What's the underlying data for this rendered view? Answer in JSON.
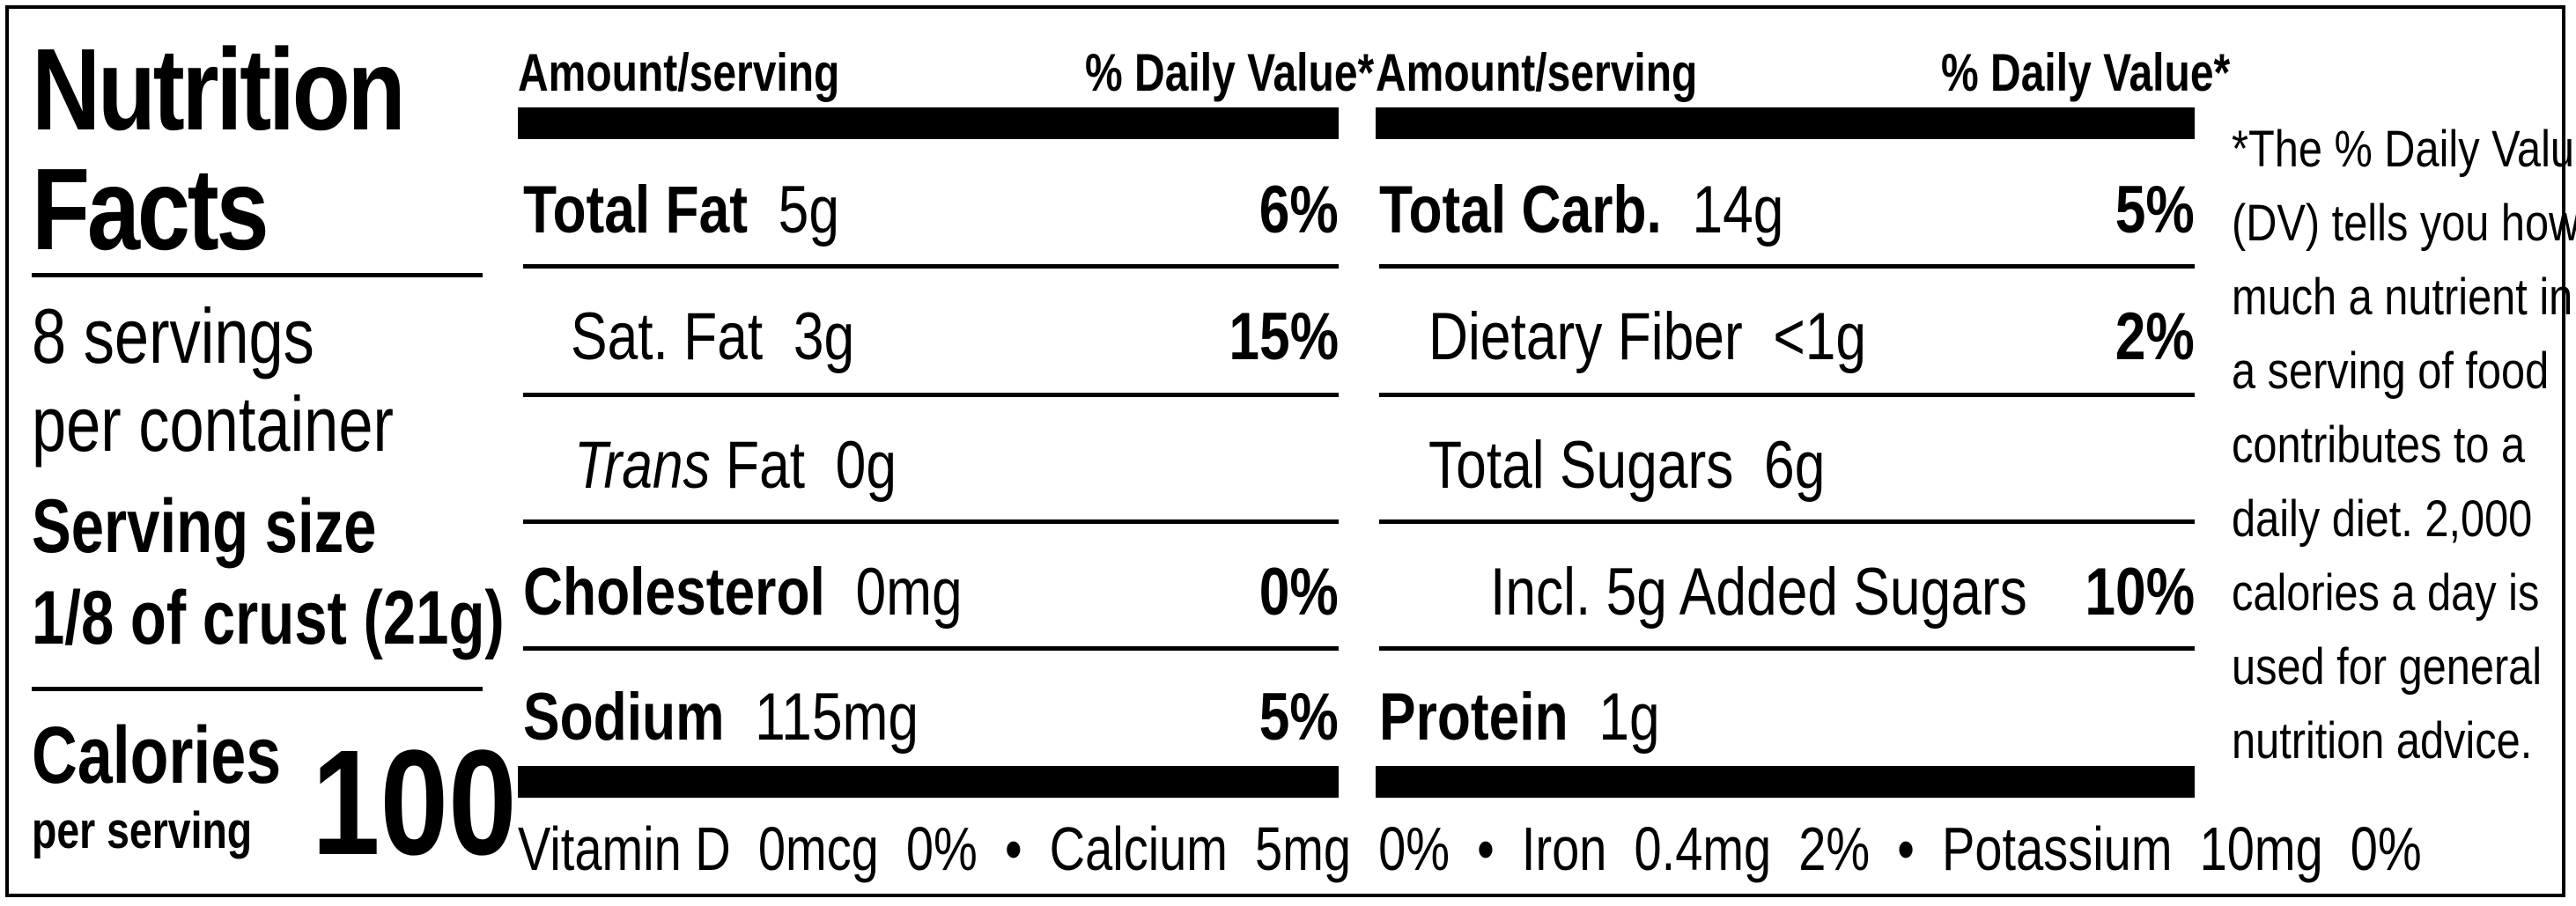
{
  "label": {
    "title_line1": "Nutrition",
    "title_line2": "Facts",
    "servings_line1": "8 servings",
    "servings_line2": "per container",
    "serving_size_label": "Serving size",
    "serving_size_value": "1/8 of crust (21g)",
    "calories_label": "Calories",
    "calories_sub": "per serving",
    "calories_value": "100",
    "header_amount": "Amount/serving",
    "header_dv": "% Daily Value*",
    "left_column": [
      {
        "name": "Total Fat",
        "amount": "5g",
        "dv": "6%"
      },
      {
        "name": "Sat. Fat",
        "amount": "3g",
        "dv": "15%"
      },
      {
        "name": "Trans",
        "name_rest": "Fat",
        "amount": "0g",
        "dv": ""
      },
      {
        "name": "Cholesterol",
        "amount": "0mg",
        "dv": "0%"
      },
      {
        "name": "Sodium",
        "amount": "115mg",
        "dv": "5%"
      }
    ],
    "right_column": [
      {
        "name": "Total Carb.",
        "amount": "14g",
        "dv": "5%"
      },
      {
        "name": "Dietary Fiber",
        "amount": "<1g",
        "dv": "2%"
      },
      {
        "name": "Total Sugars",
        "amount": "6g",
        "dv": ""
      },
      {
        "name": "Incl. 5g Added Sugars",
        "amount": "",
        "dv": "10%"
      },
      {
        "name": "Protein",
        "amount": "1g",
        "dv": ""
      }
    ],
    "vitamins_line": "Vitamin D  0mcg  0%  •  Calcium  5mg  0%  •  Iron  0.4mg  2%  •  Potassium  10mg  0%",
    "footnote_lines": [
      "*The % Daily Value",
      "(DV) tells you how",
      "much a nutrient in",
      "a serving of food",
      "contributes to a",
      "daily diet. 2,000",
      "calories a day is",
      "used for general",
      "nutrition advice."
    ]
  }
}
